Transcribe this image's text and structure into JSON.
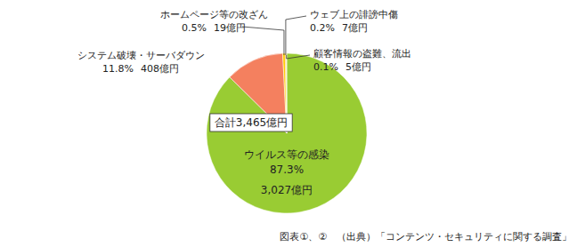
{
  "chart_data": {
    "type": "pie",
    "categories": [
      "ウイルス等の感染",
      "システム破壊・サーバダウン",
      "ホームページ等の改ざん",
      "ウェブ上の誹謗中傷",
      "顧客情報の盗難、流出"
    ],
    "values": [
      87.3,
      11.8,
      0.5,
      0.2,
      0.1
    ],
    "value_labels": [
      "87.3%",
      "11.8%",
      "0.5%",
      "0.2%",
      "0.1%"
    ],
    "amounts": [
      3027,
      408,
      19,
      7,
      5
    ],
    "amount_labels": [
      "3,027億円",
      "408億円",
      "19億円",
      "7億円",
      "5億円"
    ],
    "colors": [
      "#99cc33",
      "#f4805f",
      "#ffcc00",
      "#ff9900",
      "#ffee66"
    ],
    "data_labels": true,
    "annotations": [
      "合計3,465億円"
    ],
    "source": "図表①、②　（出典）「コンテンツ・セキュリティに関する調査」"
  }
}
